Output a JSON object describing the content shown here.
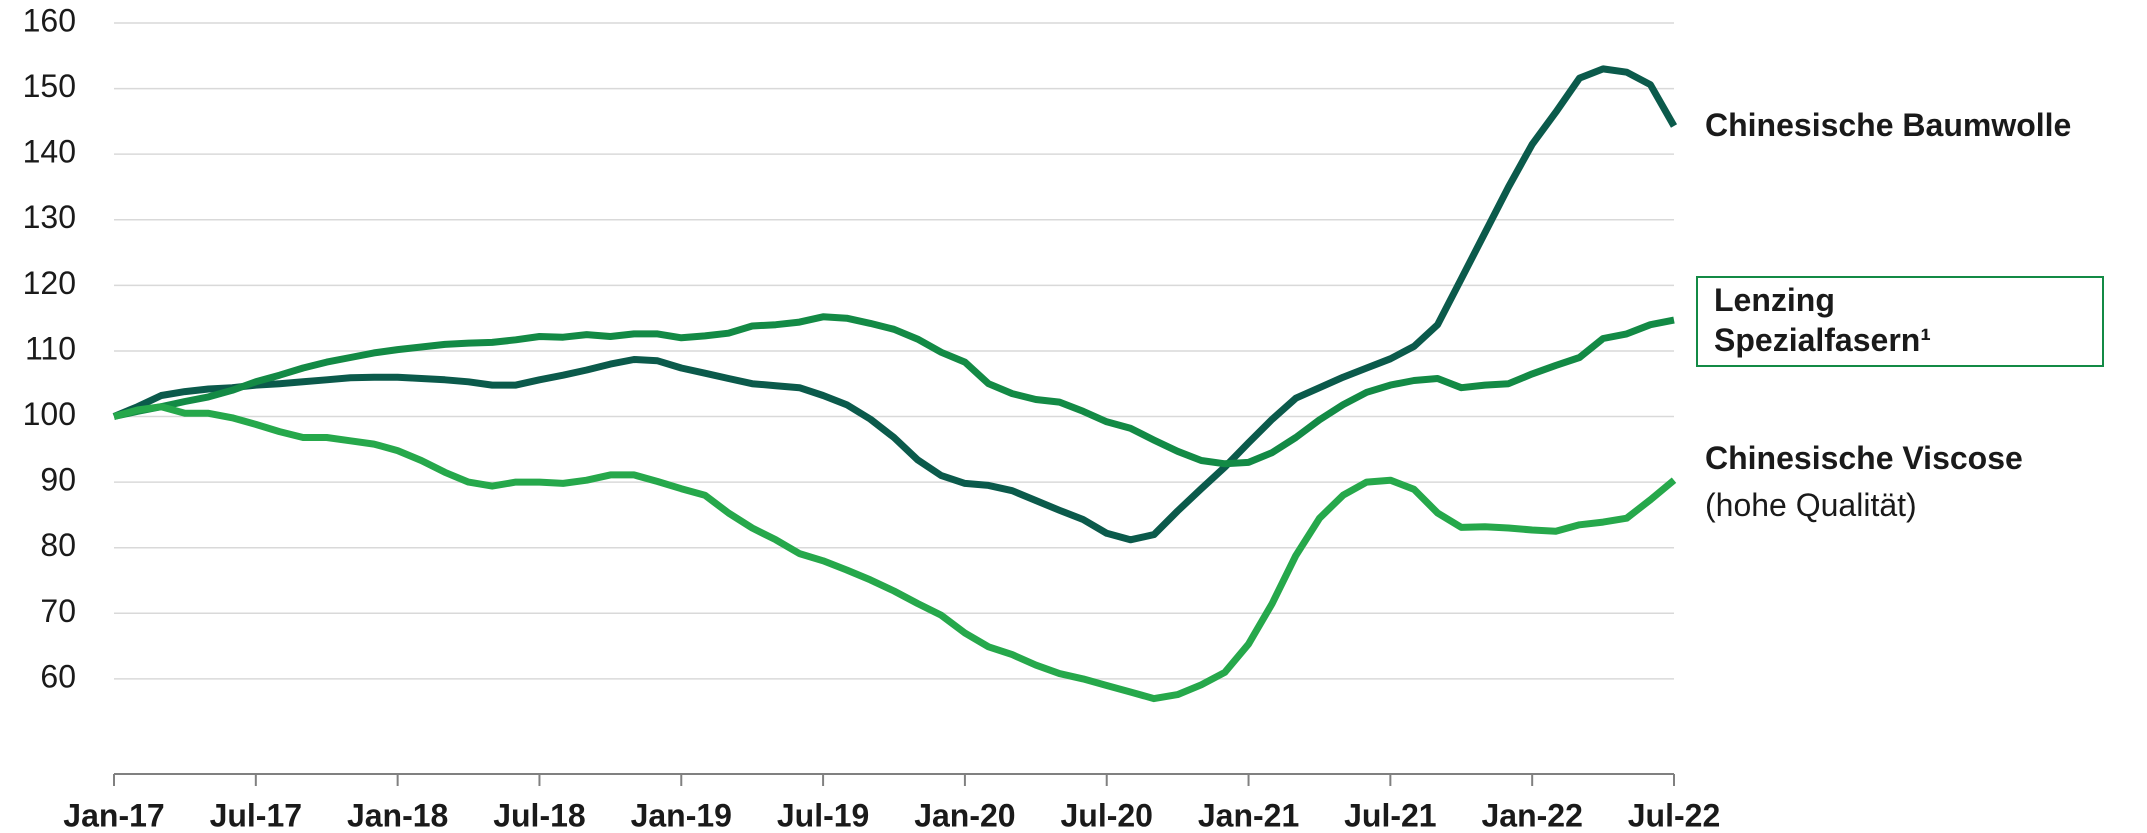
{
  "chart_data": {
    "type": "line",
    "categories": [
      "Jan-17",
      null,
      null,
      null,
      null,
      null,
      "Jul-17",
      null,
      null,
      null,
      null,
      null,
      "Jan-18",
      null,
      null,
      null,
      null,
      null,
      "Jul-18",
      null,
      null,
      null,
      null,
      null,
      "Jan-19",
      null,
      null,
      null,
      null,
      null,
      "Jul-19",
      null,
      null,
      null,
      null,
      null,
      "Jan-20",
      null,
      null,
      null,
      null,
      null,
      "Jul-20",
      null,
      null,
      null,
      null,
      null,
      "Jan-21",
      null,
      null,
      null,
      null,
      null,
      "Jul-21",
      null,
      null,
      null,
      null,
      null,
      "Jan-22",
      null,
      null,
      null,
      null,
      null,
      "Jul-22"
    ],
    "series": [
      {
        "name": "Chinesische Baumwolle",
        "color": "#0b5a4b",
        "values": [
          100,
          101.5,
          103.2,
          103.8,
          104.2,
          104.4,
          104.8,
          105,
          105.3,
          105.6,
          105.9,
          106,
          106,
          105.8,
          105.6,
          105.3,
          104.8,
          104.8,
          105.6,
          106.3,
          107.1,
          108,
          108.7,
          108.5,
          107.4,
          106.6,
          105.8,
          105,
          104.7,
          104.4,
          103.2,
          101.8,
          99.6,
          96.8,
          93.4,
          91,
          89.8,
          89.5,
          88.7,
          87.2,
          85.7,
          84.3,
          82.2,
          81.2,
          82,
          85.6,
          89,
          92.3,
          96,
          99.6,
          102.8,
          104.4,
          106,
          107.4,
          108.8,
          110.7,
          114,
          121,
          128,
          135,
          141.5,
          146.4,
          151.6,
          153,
          152.5,
          150.6,
          144.3
        ]
      },
      {
        "name": "Lenzing Spezialfasern¹",
        "color": "#138a45",
        "boxed": true,
        "values": [
          100,
          100.8,
          101.5,
          102.3,
          103,
          104,
          105.3,
          106.3,
          107.4,
          108.3,
          109,
          109.7,
          110.2,
          110.6,
          111,
          111.2,
          111.3,
          111.7,
          112.2,
          112.1,
          112.5,
          112.2,
          112.6,
          112.6,
          112,
          112.3,
          112.7,
          113.8,
          114,
          114.4,
          115.2,
          115,
          114.2,
          113.3,
          111.8,
          109.8,
          108.3,
          105,
          103.5,
          102.6,
          102.2,
          100.8,
          99.2,
          98.2,
          96.4,
          94.7,
          93.3,
          92.8,
          93,
          94.5,
          96.8,
          99.5,
          101.8,
          103.7,
          104.8,
          105.5,
          105.8,
          104.4,
          104.8,
          105,
          106.5,
          107.8,
          109,
          111.9,
          112.6,
          114,
          114.7
        ]
      },
      {
        "name": "Chinesische Viscose",
        "note": "(hohe Qualität)",
        "color": "#26a84b",
        "values": [
          100,
          101,
          101.5,
          100.5,
          100.5,
          99.8,
          98.8,
          97.7,
          96.8,
          96.8,
          96.3,
          95.8,
          94.8,
          93.3,
          91.5,
          90,
          89.4,
          90,
          90,
          89.8,
          90.3,
          91.1,
          91.1,
          90.1,
          89,
          88,
          85.3,
          83,
          81.2,
          79.1,
          78,
          76.6,
          75.1,
          73.4,
          71.5,
          69.7,
          67,
          64.9,
          63.7,
          62.1,
          60.8,
          60,
          59,
          58,
          57,
          57.6,
          59.1,
          61,
          65.3,
          71.5,
          78.8,
          84.5,
          88,
          90,
          90.3,
          88.9,
          85.3,
          83.1,
          83.2,
          83,
          82.7,
          82.5,
          83.5,
          83.9,
          84.5,
          87.3,
          90.3
        ]
      }
    ],
    "ylim": [
      45.5,
      160
    ],
    "yticks": [
      60,
      70,
      80,
      90,
      100,
      110,
      120,
      130,
      140,
      150,
      160
    ],
    "grid": true
  }
}
